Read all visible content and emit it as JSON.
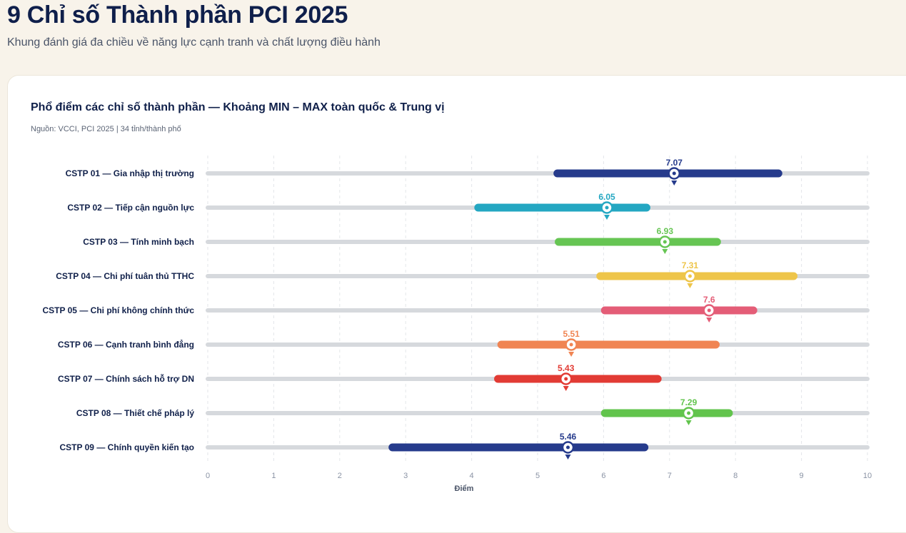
{
  "header": {
    "title": "9 Chỉ số Thành phần PCI 2025",
    "subtitle": "Khung đánh giá đa chiều về năng lực cạnh tranh và chất lượng điều hành"
  },
  "chart_data": {
    "type": "range-dot",
    "title": "Phổ điểm các chỉ số thành phần — Khoảng MIN – MAX toàn quốc & Trung vị",
    "source": "Nguồn: VCCI, PCI 2025 | 34 tỉnh/thành phố",
    "xlabel": "Điểm",
    "xlim": [
      0,
      10
    ],
    "xticks": [
      "0",
      "1",
      "2",
      "3",
      "4",
      "5",
      "6",
      "7",
      "8",
      "9",
      "10"
    ],
    "grid": true,
    "series": [
      {
        "label": "CSTP 01 — Gia nhập thị trường",
        "min": 5.3,
        "max": 8.65,
        "median": 7.07,
        "median_label": "7.07",
        "color": "#263b8c"
      },
      {
        "label": "CSTP 02 — Tiếp cận nguồn lực",
        "min": 4.1,
        "max": 6.65,
        "median": 6.05,
        "median_label": "6.05",
        "color": "#24a7c2"
      },
      {
        "label": "CSTP 03 — Tính minh bạch",
        "min": 5.32,
        "max": 7.72,
        "median": 6.93,
        "median_label": "6.93",
        "color": "#66c553"
      },
      {
        "label": "CSTP 04 — Chi phí tuân thủ TTHC",
        "min": 5.95,
        "max": 8.88,
        "median": 7.31,
        "median_label": "7.31",
        "color": "#eec54a"
      },
      {
        "label": "CSTP 05 — Chi phí không chính thức",
        "min": 6.02,
        "max": 8.27,
        "median": 7.6,
        "median_label": "7.6",
        "color": "#e45d77"
      },
      {
        "label": "CSTP 06 — Cạnh tranh bình đẳng",
        "min": 4.45,
        "max": 7.7,
        "median": 5.51,
        "median_label": "5.51",
        "color": "#f08553"
      },
      {
        "label": "CSTP 07 — Chính sách hỗ trợ DN",
        "min": 4.4,
        "max": 6.82,
        "median": 5.43,
        "median_label": "5.43",
        "color": "#e23b34"
      },
      {
        "label": "CSTP 08 — Thiết chế pháp lý",
        "min": 6.02,
        "max": 7.9,
        "median": 7.29,
        "median_label": "7.29",
        "color": "#62c44d"
      },
      {
        "label": "CSTP 09 — Chính quyền kiến tạo",
        "min": 2.8,
        "max": 6.62,
        "median": 5.46,
        "median_label": "5.46",
        "color": "#263b8c"
      }
    ]
  }
}
